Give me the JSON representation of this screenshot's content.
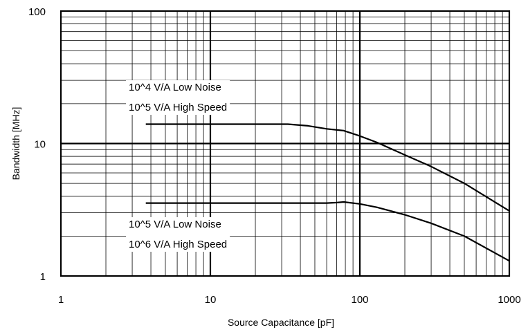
{
  "chart_data": {
    "type": "line",
    "title": "",
    "xlabel": "Source Capacitance [pF]",
    "ylabel": "Bandwidth [MHz]",
    "x_scale": "log",
    "y_scale": "log",
    "xlim": [
      1,
      1000
    ],
    "ylim": [
      1,
      100
    ],
    "x_ticks": [
      "1",
      "10",
      "100",
      "1000"
    ],
    "y_ticks": [
      "1",
      "10",
      "100"
    ],
    "grid": true,
    "series": [
      {
        "x": [
          3.7,
          10,
          20,
          33,
          45,
          60,
          78,
          100,
          130,
          200,
          300,
          500,
          1000
        ],
        "y": [
          14,
          14,
          14,
          14,
          13.6,
          12.9,
          12.5,
          11.4,
          10.2,
          8.2,
          6.7,
          5.0,
          3.1
        ]
      },
      {
        "x": [
          3.7,
          10,
          20,
          40,
          60,
          70,
          78,
          100,
          130,
          200,
          300,
          500,
          1000
        ],
        "y": [
          3.55,
          3.55,
          3.55,
          3.55,
          3.55,
          3.58,
          3.62,
          3.5,
          3.3,
          2.9,
          2.5,
          2.0,
          1.3
        ]
      }
    ],
    "annotations": [
      {
        "lines": [
          "10^4 V/A Low Noise",
          "10^5 V/A High Speed"
        ]
      },
      {
        "lines": [
          "10^5 V/A Low Noise",
          "10^6 V/A High Speed"
        ]
      }
    ]
  }
}
